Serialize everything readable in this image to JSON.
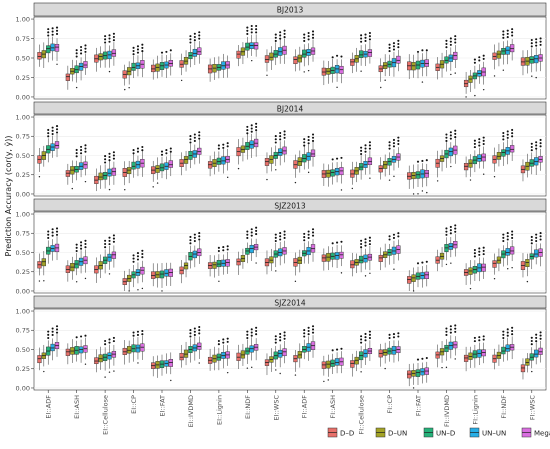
{
  "chart_data": {
    "type": "boxplot",
    "ylabel": "Prediction Accuracy (cor(y, ŷ))",
    "y_ticks": [
      "0.00",
      "0.25",
      "0.50",
      "0.75",
      "1.00"
    ],
    "ylim": [
      0,
      1
    ],
    "categories": [
      "EI::ADF",
      "EI::ASH",
      "EI::Cellulose",
      "EI::CP",
      "EI::FAT",
      "EI::IVDMD",
      "EI::Lignin",
      "EI::NDF",
      "EI::WSC",
      "FI::ADF",
      "FI::ASH",
      "FI::Cellulose",
      "FI::CP",
      "FI::FAT",
      "FI::IVDMD",
      "FI::Lignin",
      "FI::NDF",
      "FI::WSC"
    ],
    "legend": {
      "position": "bottom-right",
      "entries": [
        {
          "name": "D–D",
          "color": "#e8706a"
        },
        {
          "name": "D–UN",
          "color": "#a3a326"
        },
        {
          "name": "UN–D",
          "color": "#25b27a"
        },
        {
          "name": "UN–UN",
          "color": "#27aee6"
        },
        {
          "name": "MegaLMM",
          "color": "#d96ee0"
        }
      ]
    },
    "panels": [
      {
        "title": "BJ2013",
        "medians": [
          [
            0.52,
            0.55,
            0.62,
            0.63,
            0.64
          ],
          [
            0.26,
            0.33,
            0.35,
            0.39,
            0.41
          ],
          [
            0.49,
            0.52,
            0.53,
            0.54,
            0.56
          ],
          [
            0.29,
            0.33,
            0.38,
            0.4,
            0.42
          ],
          [
            0.36,
            0.38,
            0.4,
            0.41,
            0.43
          ],
          [
            0.42,
            0.46,
            0.53,
            0.56,
            0.58
          ],
          [
            0.36,
            0.37,
            0.38,
            0.4,
            0.41
          ],
          [
            0.55,
            0.58,
            0.64,
            0.66,
            0.66
          ],
          [
            0.48,
            0.51,
            0.55,
            0.58,
            0.6
          ],
          [
            0.48,
            0.5,
            0.55,
            0.57,
            0.59
          ],
          [
            0.32,
            0.33,
            0.34,
            0.36,
            0.35
          ],
          [
            0.45,
            0.49,
            0.54,
            0.55,
            0.57
          ],
          [
            0.36,
            0.4,
            0.42,
            0.44,
            0.47
          ],
          [
            0.4,
            0.4,
            0.41,
            0.43,
            0.43
          ],
          [
            0.38,
            0.42,
            0.47,
            0.5,
            0.53
          ],
          [
            0.17,
            0.23,
            0.27,
            0.3,
            0.32
          ],
          [
            0.52,
            0.55,
            0.59,
            0.6,
            0.62
          ],
          [
            0.45,
            0.46,
            0.48,
            0.49,
            0.5
          ]
        ],
        "stars": [
          3,
          3,
          3,
          3,
          1,
          3,
          0,
          3,
          3,
          3,
          1,
          3,
          3,
          1,
          3,
          2,
          3,
          3
        ]
      },
      {
        "title": "BJ2014",
        "medians": [
          [
            0.45,
            0.5,
            0.58,
            0.61,
            0.63
          ],
          [
            0.27,
            0.31,
            0.32,
            0.36,
            0.38
          ],
          [
            0.18,
            0.22,
            0.24,
            0.27,
            0.29
          ],
          [
            0.28,
            0.31,
            0.36,
            0.38,
            0.4
          ],
          [
            0.31,
            0.33,
            0.34,
            0.36,
            0.38
          ],
          [
            0.4,
            0.45,
            0.5,
            0.52,
            0.55
          ],
          [
            0.38,
            0.4,
            0.42,
            0.43,
            0.45
          ],
          [
            0.55,
            0.58,
            0.62,
            0.64,
            0.66
          ],
          [
            0.42,
            0.45,
            0.5,
            0.54,
            0.56
          ],
          [
            0.38,
            0.42,
            0.46,
            0.49,
            0.52
          ],
          [
            0.26,
            0.27,
            0.28,
            0.29,
            0.3
          ],
          [
            0.26,
            0.3,
            0.35,
            0.38,
            0.42
          ],
          [
            0.33,
            0.38,
            0.42,
            0.45,
            0.48
          ],
          [
            0.23,
            0.24,
            0.25,
            0.26,
            0.27
          ],
          [
            0.4,
            0.46,
            0.52,
            0.55,
            0.57
          ],
          [
            0.36,
            0.4,
            0.44,
            0.46,
            0.48
          ],
          [
            0.45,
            0.49,
            0.54,
            0.56,
            0.58
          ],
          [
            0.32,
            0.36,
            0.4,
            0.42,
            0.45
          ]
        ],
        "stars": [
          3,
          3,
          3,
          2,
          2,
          3,
          2,
          3,
          3,
          3,
          1,
          3,
          3,
          1,
          3,
          3,
          3,
          3
        ]
      },
      {
        "title": "SJZ2013",
        "medians": [
          [
            0.34,
            0.38,
            0.52,
            0.55,
            0.56
          ],
          [
            0.28,
            0.31,
            0.35,
            0.38,
            0.4
          ],
          [
            0.28,
            0.33,
            0.4,
            0.44,
            0.47
          ],
          [
            0.12,
            0.16,
            0.21,
            0.24,
            0.27
          ],
          [
            0.2,
            0.21,
            0.22,
            0.23,
            0.24
          ],
          [
            0.27,
            0.33,
            0.45,
            0.48,
            0.5
          ],
          [
            0.33,
            0.34,
            0.35,
            0.36,
            0.37
          ],
          [
            0.38,
            0.42,
            0.52,
            0.55,
            0.57
          ],
          [
            0.37,
            0.4,
            0.48,
            0.5,
            0.52
          ],
          [
            0.37,
            0.4,
            0.49,
            0.52,
            0.55
          ],
          [
            0.43,
            0.44,
            0.45,
            0.46,
            0.47
          ],
          [
            0.34,
            0.37,
            0.4,
            0.42,
            0.44
          ],
          [
            0.43,
            0.47,
            0.5,
            0.52,
            0.54
          ],
          [
            0.15,
            0.17,
            0.19,
            0.2,
            0.21
          ],
          [
            0.4,
            0.45,
            0.56,
            0.58,
            0.6
          ],
          [
            0.24,
            0.26,
            0.28,
            0.3,
            0.31
          ],
          [
            0.36,
            0.4,
            0.48,
            0.5,
            0.52
          ],
          [
            0.33,
            0.37,
            0.45,
            0.48,
            0.5
          ]
        ],
        "stars": [
          3,
          3,
          3,
          3,
          0,
          3,
          2,
          3,
          3,
          3,
          1,
          3,
          2,
          1,
          3,
          3,
          3,
          3
        ]
      },
      {
        "title": "SJZ2014",
        "medians": [
          [
            0.38,
            0.42,
            0.48,
            0.52,
            0.55
          ],
          [
            0.47,
            0.48,
            0.49,
            0.5,
            0.51
          ],
          [
            0.35,
            0.38,
            0.4,
            0.42,
            0.44
          ],
          [
            0.47,
            0.49,
            0.51,
            0.52,
            0.53
          ],
          [
            0.29,
            0.3,
            0.31,
            0.32,
            0.33
          ],
          [
            0.4,
            0.44,
            0.5,
            0.52,
            0.54
          ],
          [
            0.36,
            0.38,
            0.4,
            0.42,
            0.43
          ],
          [
            0.4,
            0.43,
            0.48,
            0.51,
            0.53
          ],
          [
            0.33,
            0.37,
            0.42,
            0.45,
            0.47
          ],
          [
            0.38,
            0.43,
            0.5,
            0.53,
            0.55
          ],
          [
            0.3,
            0.31,
            0.32,
            0.33,
            0.34
          ],
          [
            0.32,
            0.36,
            0.42,
            0.45,
            0.48
          ],
          [
            0.45,
            0.46,
            0.48,
            0.49,
            0.5
          ],
          [
            0.18,
            0.19,
            0.2,
            0.21,
            0.22
          ],
          [
            0.43,
            0.47,
            0.52,
            0.55,
            0.56
          ],
          [
            0.39,
            0.41,
            0.44,
            0.45,
            0.46
          ],
          [
            0.38,
            0.42,
            0.48,
            0.51,
            0.53
          ],
          [
            0.26,
            0.33,
            0.4,
            0.44,
            0.47
          ]
        ],
        "stars": [
          3,
          1,
          2,
          2,
          0,
          3,
          2,
          3,
          3,
          3,
          1,
          3,
          2,
          1,
          3,
          2,
          3,
          3
        ]
      }
    ]
  }
}
